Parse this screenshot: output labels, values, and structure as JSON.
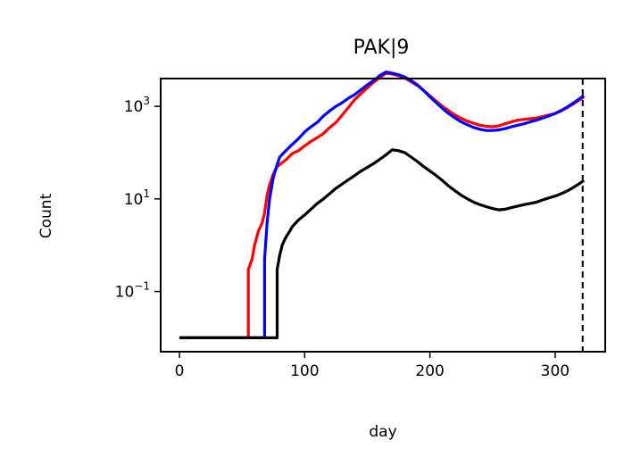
{
  "chart_data": {
    "type": "line",
    "title": "PAK|9",
    "xlabel": "day",
    "ylabel": "Count",
    "xlim": [
      -15,
      340
    ],
    "ylim_log10": [
      -2.3,
      3.6
    ],
    "y_scale": "log",
    "x_ticks": [
      0,
      100,
      200,
      300
    ],
    "x_tick_labels": [
      "0",
      "100",
      "200",
      "300"
    ],
    "y_ticks": [
      {
        "base": "10",
        "exp": "3",
        "log10": 3
      },
      {
        "base": "10",
        "exp": "1",
        "log10": 1
      },
      {
        "base": "10",
        "exp": "−1",
        "log10": -1
      }
    ],
    "vline": {
      "x": 322,
      "style": "dashed",
      "color": "#000000"
    },
    "grid": false,
    "legend": null,
    "series": [
      {
        "color": "#ff0000",
        "points": [
          [
            0,
            0.01
          ],
          [
            55,
            0.01
          ],
          [
            55,
            0.3
          ],
          [
            58,
            0.5
          ],
          [
            60,
            1.0
          ],
          [
            63,
            2.0
          ],
          [
            66,
            3.0
          ],
          [
            68,
            5.0
          ],
          [
            70,
            12
          ],
          [
            72,
            20
          ],
          [
            75,
            35
          ],
          [
            78,
            50
          ],
          [
            80,
            55
          ],
          [
            85,
            70
          ],
          [
            90,
            95
          ],
          [
            95,
            110
          ],
          [
            100,
            140
          ],
          [
            105,
            175
          ],
          [
            110,
            210
          ],
          [
            115,
            260
          ],
          [
            120,
            350
          ],
          [
            125,
            450
          ],
          [
            130,
            650
          ],
          [
            135,
            950
          ],
          [
            140,
            1400
          ],
          [
            145,
            1900
          ],
          [
            150,
            2500
          ],
          [
            155,
            3300
          ],
          [
            160,
            4200
          ],
          [
            165,
            5200
          ],
          [
            170,
            5000
          ],
          [
            175,
            4600
          ],
          [
            180,
            4100
          ],
          [
            185,
            3400
          ],
          [
            190,
            2800
          ],
          [
            195,
            2200
          ],
          [
            200,
            1700
          ],
          [
            205,
            1300
          ],
          [
            210,
            1000
          ],
          [
            215,
            800
          ],
          [
            220,
            650
          ],
          [
            225,
            550
          ],
          [
            230,
            480
          ],
          [
            235,
            430
          ],
          [
            240,
            390
          ],
          [
            245,
            370
          ],
          [
            250,
            360
          ],
          [
            255,
            380
          ],
          [
            260,
            420
          ],
          [
            265,
            460
          ],
          [
            270,
            500
          ],
          [
            275,
            520
          ],
          [
            280,
            540
          ],
          [
            285,
            560
          ],
          [
            290,
            600
          ],
          [
            295,
            650
          ],
          [
            300,
            700
          ],
          [
            305,
            800
          ],
          [
            310,
            950
          ],
          [
            315,
            1150
          ],
          [
            320,
            1400
          ],
          [
            323,
            1600
          ]
        ]
      },
      {
        "color": "#0000ff",
        "points": [
          [
            0,
            0.01
          ],
          [
            68,
            0.01
          ],
          [
            68,
            0.5
          ],
          [
            70,
            3.0
          ],
          [
            72,
            10
          ],
          [
            75,
            30
          ],
          [
            78,
            55
          ],
          [
            80,
            80
          ],
          [
            85,
            110
          ],
          [
            90,
            150
          ],
          [
            95,
            200
          ],
          [
            100,
            280
          ],
          [
            105,
            360
          ],
          [
            110,
            450
          ],
          [
            115,
            620
          ],
          [
            120,
            800
          ],
          [
            125,
            1000
          ],
          [
            130,
            1200
          ],
          [
            135,
            1500
          ],
          [
            140,
            1800
          ],
          [
            145,
            2300
          ],
          [
            150,
            2900
          ],
          [
            155,
            3600
          ],
          [
            160,
            4600
          ],
          [
            165,
            5500
          ],
          [
            170,
            5200
          ],
          [
            175,
            4800
          ],
          [
            180,
            4300
          ],
          [
            185,
            3600
          ],
          [
            190,
            2900
          ],
          [
            195,
            2200
          ],
          [
            200,
            1600
          ],
          [
            205,
            1200
          ],
          [
            210,
            900
          ],
          [
            215,
            700
          ],
          [
            220,
            560
          ],
          [
            225,
            460
          ],
          [
            230,
            400
          ],
          [
            235,
            350
          ],
          [
            240,
            320
          ],
          [
            245,
            300
          ],
          [
            250,
            300
          ],
          [
            255,
            310
          ],
          [
            260,
            330
          ],
          [
            265,
            360
          ],
          [
            270,
            390
          ],
          [
            275,
            420
          ],
          [
            280,
            460
          ],
          [
            285,
            500
          ],
          [
            290,
            560
          ],
          [
            295,
            620
          ],
          [
            300,
            700
          ],
          [
            305,
            820
          ],
          [
            310,
            980
          ],
          [
            315,
            1200
          ],
          [
            320,
            1500
          ],
          [
            323,
            1700
          ]
        ]
      },
      {
        "color": "#000000",
        "points": [
          [
            0,
            0.01
          ],
          [
            78,
            0.01
          ],
          [
            78,
            0.3
          ],
          [
            80,
            0.6
          ],
          [
            82,
            1.0
          ],
          [
            85,
            1.5
          ],
          [
            88,
            2.0
          ],
          [
            90,
            2.5
          ],
          [
            95,
            3.5
          ],
          [
            100,
            4.5
          ],
          [
            105,
            6.0
          ],
          [
            110,
            8.0
          ],
          [
            115,
            10
          ],
          [
            120,
            13
          ],
          [
            125,
            17
          ],
          [
            130,
            21
          ],
          [
            135,
            26
          ],
          [
            140,
            32
          ],
          [
            145,
            40
          ],
          [
            150,
            48
          ],
          [
            155,
            58
          ],
          [
            160,
            72
          ],
          [
            165,
            90
          ],
          [
            170,
            115
          ],
          [
            175,
            110
          ],
          [
            180,
            100
          ],
          [
            185,
            80
          ],
          [
            190,
            64
          ],
          [
            195,
            50
          ],
          [
            200,
            40
          ],
          [
            205,
            32
          ],
          [
            210,
            25
          ],
          [
            215,
            19
          ],
          [
            220,
            15
          ],
          [
            225,
            12
          ],
          [
            230,
            10
          ],
          [
            235,
            8.5
          ],
          [
            240,
            7.5
          ],
          [
            245,
            6.8
          ],
          [
            250,
            6.2
          ],
          [
            255,
            5.8
          ],
          [
            260,
            6.0
          ],
          [
            265,
            6.5
          ],
          [
            270,
            7.0
          ],
          [
            275,
            7.5
          ],
          [
            280,
            8.0
          ],
          [
            285,
            8.5
          ],
          [
            290,
            9.5
          ],
          [
            295,
            10.5
          ],
          [
            300,
            11.5
          ],
          [
            305,
            13
          ],
          [
            310,
            15
          ],
          [
            315,
            18
          ],
          [
            320,
            22
          ],
          [
            323,
            25
          ]
        ]
      }
    ]
  }
}
